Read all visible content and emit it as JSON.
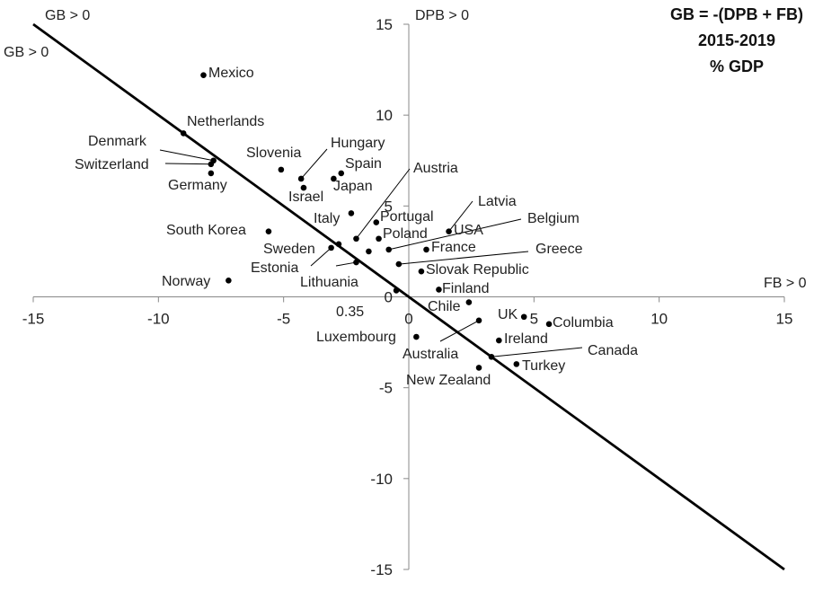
{
  "chart_data": {
    "type": "scatter",
    "title_lines": [
      "GB = -(DPB + FB)",
      "2015-2019",
      "% GDP"
    ],
    "x_axis_label": "FB > 0",
    "y_axis_label": "DPB > 0",
    "quadrant_labels": {
      "top_left_axis": "GB > 0",
      "top_left_line": "GB > 0"
    },
    "xlim": [
      -15,
      15
    ],
    "ylim": [
      -15,
      15
    ],
    "x_ticks": [
      "-15",
      "-10",
      "-5",
      "0",
      "5",
      "10",
      "15"
    ],
    "y_ticks": [
      "15",
      "10",
      "5",
      "0",
      "-5",
      "-10",
      "-15"
    ],
    "x_tick_values": [
      -15,
      -10,
      -5,
      0,
      5,
      10,
      15
    ],
    "y_tick_values": [
      15,
      10,
      5,
      0,
      -5,
      -10,
      -15
    ],
    "reference_line": {
      "equation": "DPB = -FB",
      "from": [
        -15,
        15
      ],
      "to": [
        15,
        -15
      ]
    },
    "annotation_035": "0.35",
    "points": [
      {
        "name": "Mexico",
        "x": -8.2,
        "y": 12.2
      },
      {
        "name": "Netherlands",
        "x": -9.0,
        "y": 9.0
      },
      {
        "name": "Denmark",
        "x": -7.8,
        "y": 7.5
      },
      {
        "name": "Switzerland",
        "x": -7.9,
        "y": 7.3
      },
      {
        "name": "Germany",
        "x": -7.9,
        "y": 6.8
      },
      {
        "name": "Slovenia",
        "x": -5.1,
        "y": 7.0
      },
      {
        "name": "Hungary",
        "x": -4.3,
        "y": 6.5
      },
      {
        "name": "Spain",
        "x": -2.7,
        "y": 6.8
      },
      {
        "name": "Japan",
        "x": -3.0,
        "y": 6.5
      },
      {
        "name": "Israel",
        "x": -4.2,
        "y": 6.0
      },
      {
        "name": "Austria",
        "x": -2.1,
        "y": 3.2
      },
      {
        "name": "Latvia",
        "x": 1.6,
        "y": 3.6
      },
      {
        "name": "Portugal",
        "x": -1.3,
        "y": 4.1
      },
      {
        "name": "Italy",
        "x": -2.3,
        "y": 4.6
      },
      {
        "name": "Poland",
        "x": -1.2,
        "y": 3.2
      },
      {
        "name": "USA",
        "x": -1.6,
        "y": 2.5
      },
      {
        "name": "Belgium",
        "x": -0.8,
        "y": 2.6
      },
      {
        "name": "France",
        "x": 0.7,
        "y": 2.6
      },
      {
        "name": "South Korea",
        "x": -5.6,
        "y": 3.6
      },
      {
        "name": "Sweden",
        "x": -2.8,
        "y": 2.9
      },
      {
        "name": "Estonia",
        "x": -3.1,
        "y": 2.7
      },
      {
        "name": "Lithuania",
        "x": -2.1,
        "y": 1.9
      },
      {
        "name": "Greece",
        "x": -0.4,
        "y": 1.8
      },
      {
        "name": "Slovak Republic",
        "x": 0.5,
        "y": 1.4
      },
      {
        "name": "Norway",
        "x": -7.2,
        "y": 0.9
      },
      {
        "name": "Finland",
        "x": 1.2,
        "y": 0.4
      },
      {
        "name": "0.35",
        "x": -0.5,
        "y": 0.35
      },
      {
        "name": "Chile",
        "x": 2.4,
        "y": -0.3
      },
      {
        "name": "UK",
        "x": 4.6,
        "y": -1.1
      },
      {
        "name": "Columbia",
        "x": 5.6,
        "y": -1.5
      },
      {
        "name": "Luxembourg",
        "x": 0.3,
        "y": -2.2
      },
      {
        "name": "Australia",
        "x": 2.8,
        "y": -1.3
      },
      {
        "name": "Ireland",
        "x": 3.6,
        "y": -2.4
      },
      {
        "name": "Canada",
        "x": 3.3,
        "y": -3.3
      },
      {
        "name": "Turkey",
        "x": 4.3,
        "y": -3.7
      },
      {
        "name": "New Zealand",
        "x": 2.8,
        "y": -3.9
      }
    ]
  }
}
